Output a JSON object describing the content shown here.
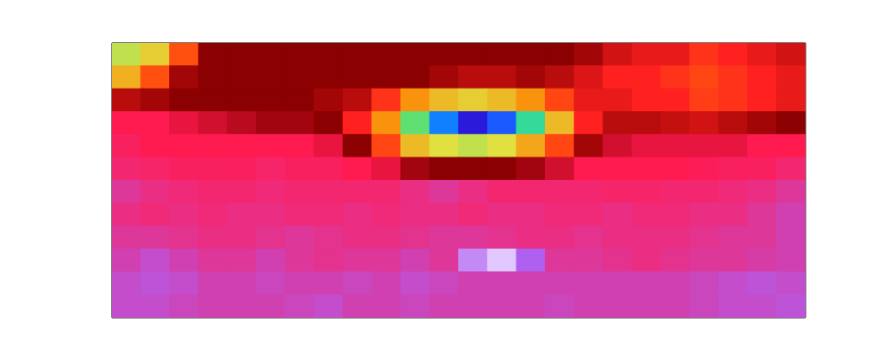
{
  "chart_data": {
    "type": "heatmap",
    "tick_labels": false,
    "xlim": [
      0,
      24
    ],
    "ylim": [
      0,
      12
    ],
    "color_range": [
      0,
      1
    ],
    "cells": [
      [
        0.38,
        0.42,
        0.55,
        0.7,
        0.7,
        0.7,
        0.7,
        0.7,
        0.7,
        0.7,
        0.7,
        0.7,
        0.7,
        0.7,
        0.7,
        0.7,
        0.68,
        0.64,
        0.62,
        0.62,
        0.58,
        0.6,
        0.62,
        0.64
      ],
      [
        0.45,
        0.55,
        0.68,
        0.7,
        0.7,
        0.7,
        0.7,
        0.7,
        0.7,
        0.7,
        0.7,
        0.68,
        0.66,
        0.66,
        0.68,
        0.66,
        0.63,
        0.6,
        0.6,
        0.58,
        0.56,
        0.58,
        0.6,
        0.62
      ],
      [
        0.66,
        0.68,
        0.7,
        0.7,
        0.7,
        0.7,
        0.7,
        0.68,
        0.66,
        0.58,
        0.48,
        0.44,
        0.42,
        0.44,
        0.48,
        0.56,
        0.62,
        0.62,
        0.6,
        0.6,
        0.57,
        0.58,
        0.6,
        0.62
      ],
      [
        0.8,
        0.8,
        0.78,
        0.76,
        0.74,
        0.72,
        0.72,
        0.7,
        0.6,
        0.48,
        0.32,
        0.15,
        0.04,
        0.12,
        0.28,
        0.44,
        0.6,
        0.66,
        0.66,
        0.65,
        0.64,
        0.66,
        0.68,
        0.7
      ],
      [
        0.82,
        0.8,
        0.8,
        0.8,
        0.8,
        0.8,
        0.8,
        0.78,
        0.7,
        0.56,
        0.44,
        0.4,
        0.38,
        0.4,
        0.46,
        0.56,
        0.68,
        0.76,
        0.78,
        0.78,
        0.78,
        0.78,
        0.8,
        0.8
      ],
      [
        0.84,
        0.83,
        0.82,
        0.82,
        0.82,
        0.83,
        0.82,
        0.82,
        0.8,
        0.78,
        0.72,
        0.7,
        0.7,
        0.7,
        0.72,
        0.76,
        0.8,
        0.8,
        0.8,
        0.8,
        0.81,
        0.82,
        0.82,
        0.84
      ],
      [
        0.88,
        0.86,
        0.85,
        0.84,
        0.84,
        0.85,
        0.84,
        0.84,
        0.84,
        0.84,
        0.86,
        0.88,
        0.86,
        0.84,
        0.84,
        0.84,
        0.84,
        0.83,
        0.83,
        0.84,
        0.84,
        0.85,
        0.86,
        0.88
      ],
      [
        0.86,
        0.85,
        0.86,
        0.85,
        0.86,
        0.86,
        0.85,
        0.85,
        0.86,
        0.85,
        0.86,
        0.86,
        0.85,
        0.86,
        0.86,
        0.85,
        0.85,
        0.86,
        0.85,
        0.85,
        0.86,
        0.86,
        0.88,
        0.9
      ],
      [
        0.88,
        0.88,
        0.87,
        0.86,
        0.86,
        0.87,
        0.88,
        0.87,
        0.86,
        0.86,
        0.87,
        0.88,
        0.88,
        0.87,
        0.86,
        0.86,
        0.87,
        0.86,
        0.86,
        0.86,
        0.87,
        0.88,
        0.88,
        0.9
      ],
      [
        0.9,
        0.92,
        0.9,
        0.88,
        0.88,
        0.9,
        0.88,
        0.87,
        0.88,
        0.88,
        0.9,
        0.88,
        0.97,
        1.0,
        0.95,
        0.88,
        0.88,
        0.87,
        0.86,
        0.87,
        0.88,
        0.88,
        0.89,
        0.9
      ],
      [
        0.92,
        0.93,
        0.92,
        0.9,
        0.9,
        0.91,
        0.9,
        0.9,
        0.91,
        0.9,
        0.92,
        0.91,
        0.9,
        0.9,
        0.9,
        0.9,
        0.9,
        0.9,
        0.9,
        0.9,
        0.91,
        0.92,
        0.93,
        0.92
      ],
      [
        0.92,
        0.92,
        0.91,
        0.9,
        0.9,
        0.9,
        0.91,
        0.92,
        0.9,
        0.9,
        0.91,
        0.9,
        0.9,
        0.9,
        0.9,
        0.91,
        0.9,
        0.9,
        0.9,
        0.9,
        0.91,
        0.92,
        0.92,
        0.93
      ]
    ]
  }
}
